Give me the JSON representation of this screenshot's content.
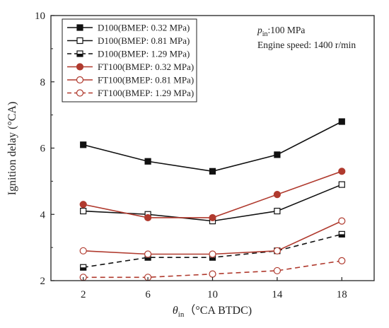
{
  "chart_data": {
    "type": "line",
    "xlabel_symbol": "θ",
    "xlabel_sub": "in",
    "xlabel_rest": "（°CA BTDC)",
    "ylabel": "Ignition delay (°CA)",
    "x": [
      2,
      6,
      10,
      14,
      18
    ],
    "xticks": [
      "2",
      "6",
      "10",
      "14",
      "18"
    ],
    "yticks": [
      "2",
      "4",
      "6",
      "8",
      "10"
    ],
    "xlim": [
      0,
      20
    ],
    "ylim": [
      2,
      10
    ],
    "grid": false,
    "legend_position": "top-left",
    "annotation_line1_sym": "p",
    "annotation_line1_sub": "in",
    "annotation_line1_rest": ":100 MPa",
    "annotation_line2": "Engine speed: 1400 r/min",
    "series": [
      {
        "name": "D100(BMEP: 0.32 MPa)",
        "values": [
          6.1,
          5.6,
          5.3,
          5.8,
          6.8
        ],
        "color": "#111111",
        "dash": "solid",
        "marker": "square-filled"
      },
      {
        "name": "D100(BMEP: 0.81 MPa)",
        "values": [
          4.1,
          4.0,
          3.8,
          4.1,
          4.9
        ],
        "color": "#111111",
        "dash": "solid",
        "marker": "square-open"
      },
      {
        "name": "D100(BMEP: 1.29 MPa)",
        "values": [
          2.4,
          2.7,
          2.7,
          2.9,
          3.4
        ],
        "color": "#111111",
        "dash": "dashed",
        "marker": "square-half"
      },
      {
        "name": "FT100(BMEP: 0.32 MPa)",
        "values": [
          4.3,
          3.9,
          3.9,
          4.6,
          5.3
        ],
        "color": "#b03a2e",
        "dash": "solid",
        "marker": "circle-filled"
      },
      {
        "name": "FT100(BMEP: 0.81 MPa)",
        "values": [
          2.9,
          2.8,
          2.8,
          2.9,
          3.8
        ],
        "color": "#b03a2e",
        "dash": "solid",
        "marker": "circle-open"
      },
      {
        "name": "FT100(BMEP: 1.29 MPa)",
        "values": [
          2.1,
          2.1,
          2.2,
          2.3,
          2.6
        ],
        "color": "#b03a2e",
        "dash": "dashed",
        "marker": "circle-open"
      }
    ]
  }
}
